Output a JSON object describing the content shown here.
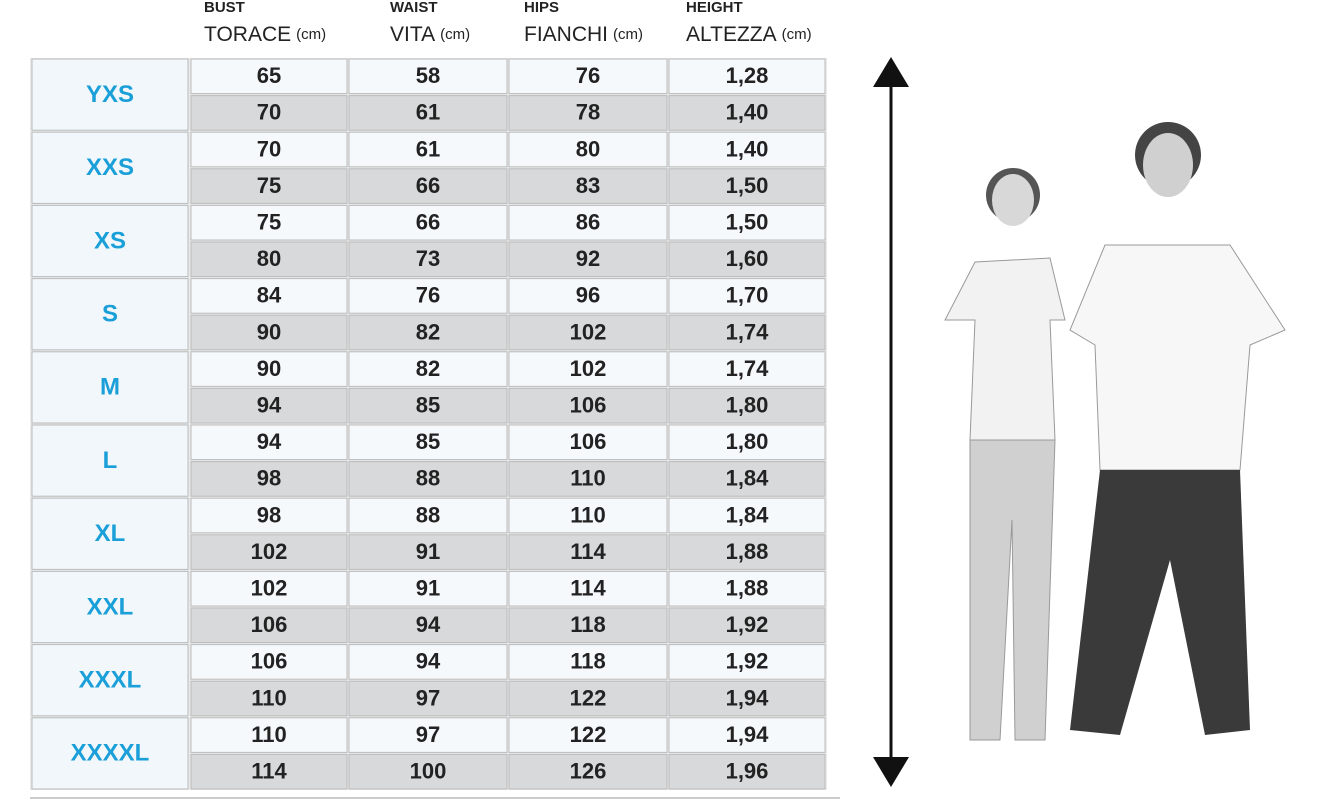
{
  "header": {
    "columns": [
      {
        "small": "BUST",
        "title": "TORACE",
        "unit": "(cm)"
      },
      {
        "small": "WAIST",
        "title": "VITA",
        "unit": "(cm)"
      },
      {
        "small": "HIPS",
        "title": "FIANCHI",
        "unit": "(cm)"
      },
      {
        "small": "HEIGHT",
        "title": "ALTEZZA",
        "unit": "(cm)"
      }
    ]
  },
  "table": {
    "rows": [
      {
        "size": "YXS",
        "values": [
          [
            65,
            58,
            76,
            "1,28"
          ],
          [
            70,
            61,
            78,
            "1,40"
          ]
        ]
      },
      {
        "size": "XXS",
        "values": [
          [
            70,
            61,
            80,
            "1,40"
          ],
          [
            75,
            66,
            83,
            "1,50"
          ]
        ]
      },
      {
        "size": "XS",
        "values": [
          [
            75,
            66,
            86,
            "1,50"
          ],
          [
            80,
            73,
            92,
            "1,60"
          ]
        ]
      },
      {
        "size": "S",
        "values": [
          [
            84,
            76,
            96,
            "1,70"
          ],
          [
            90,
            82,
            102,
            "1,74"
          ]
        ]
      },
      {
        "size": "M",
        "values": [
          [
            90,
            82,
            102,
            "1,74"
          ],
          [
            94,
            85,
            106,
            "1,80"
          ]
        ]
      },
      {
        "size": "L",
        "values": [
          [
            94,
            85,
            106,
            "1,80"
          ],
          [
            98,
            88,
            110,
            "1,84"
          ]
        ]
      },
      {
        "size": "XL",
        "values": [
          [
            98,
            88,
            110,
            "1,84"
          ],
          [
            102,
            91,
            114,
            "1,88"
          ]
        ]
      },
      {
        "size": "XXL",
        "values": [
          [
            102,
            91,
            114,
            "1,88"
          ],
          [
            106,
            94,
            118,
            "1,92"
          ]
        ]
      },
      {
        "size": "XXXL",
        "values": [
          [
            106,
            94,
            118,
            "1,92"
          ],
          [
            110,
            97,
            122,
            "1,94"
          ]
        ]
      },
      {
        "size": "XXXXL",
        "values": [
          [
            110,
            97,
            122,
            "1,94"
          ],
          [
            114,
            100,
            126,
            "1,96"
          ]
        ]
      }
    ]
  }
}
